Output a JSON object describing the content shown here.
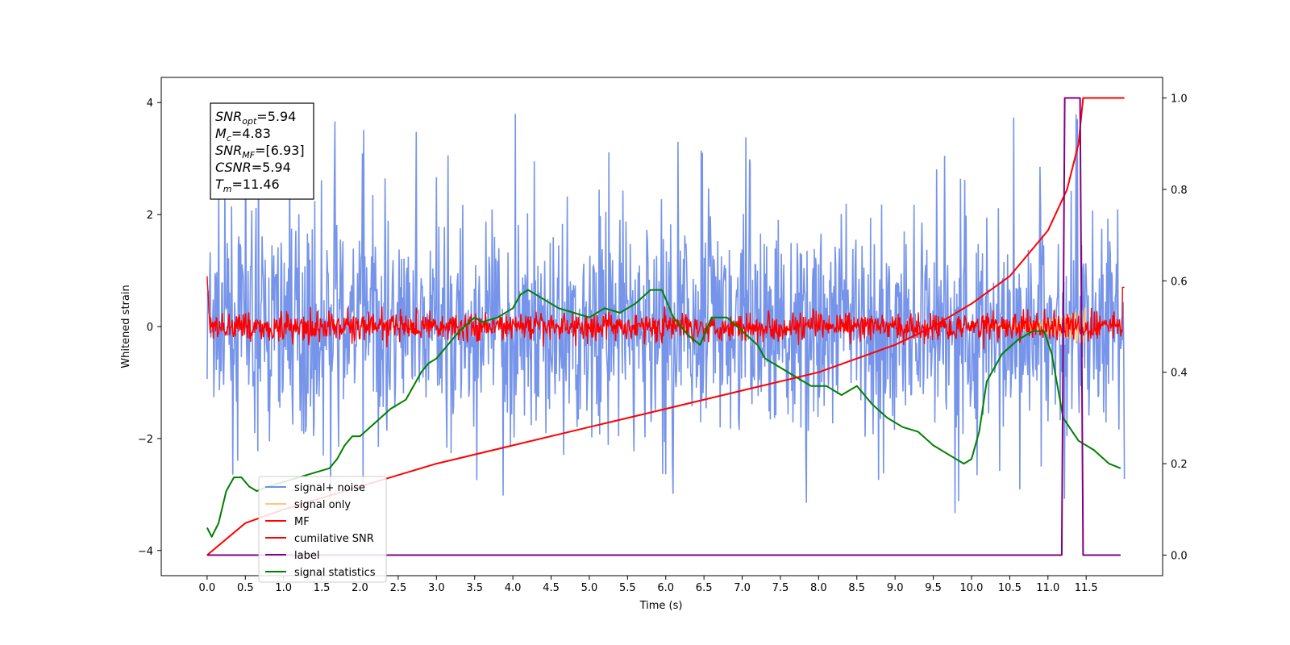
{
  "chart_data": {
    "type": "line",
    "xlabel": "Time (s)",
    "ylabel": "Whitened strain",
    "xlim": [
      -0.6,
      12.5
    ],
    "ylim": [
      -4.45,
      4.45
    ],
    "y2lim": [
      -0.045,
      1.045
    ],
    "xticks": [
      "0.0",
      "0.5",
      "1.0",
      "1.5",
      "2.0",
      "2.5",
      "3.0",
      "3.5",
      "4.0",
      "4.5",
      "5.0",
      "5.5",
      "6.0",
      "6.5",
      "7.0",
      "7.5",
      "8.0",
      "8.5",
      "9.0",
      "9.5",
      "10.0",
      "10.5",
      "11.0",
      "11.5"
    ],
    "yticks": [
      "−4",
      "−2",
      "0",
      "2",
      "4"
    ],
    "y2ticks": [
      "0.0",
      "0.2",
      "0.4",
      "0.6",
      "0.8",
      "1.0"
    ],
    "legend_position": "lower-left",
    "info_box": [
      {
        "name": "SNR",
        "sub": "opt",
        "value": "=5.94"
      },
      {
        "name": "M",
        "sub": "c",
        "value": "=4.83"
      },
      {
        "name": "SNR",
        "sub": "MF",
        "value": "=[6.93]"
      },
      {
        "name": "CSNR",
        "sub": "",
        "value": "=5.94"
      },
      {
        "name": "T",
        "sub": "m",
        "value": "=11.46"
      }
    ],
    "series": [
      {
        "name": "signal+ noise",
        "color": "#6f8ee8",
        "axis": "left",
        "style": "noise band, approx amplitude ±2.5, spikes to ±4"
      },
      {
        "name": "signal only",
        "color": "#ffc680",
        "axis": "left",
        "style": "chirp near 11.0–11.5 s, amplitude ~0.3"
      },
      {
        "name": "MF",
        "color": "#ff0000",
        "axis": "left",
        "style": "noise band, approx amplitude ±0.4"
      },
      {
        "name": "cumilative SNR",
        "color": "#ff0000",
        "axis": "right",
        "x": [
          0.0,
          0.5,
          1.0,
          2.0,
          3.0,
          4.0,
          5.0,
          6.0,
          7.0,
          8.0,
          8.5,
          9.0,
          9.5,
          10.0,
          10.5,
          11.0,
          11.25,
          11.4,
          11.46,
          12.0
        ],
        "y": [
          0.0,
          0.07,
          0.1,
          0.15,
          0.2,
          0.24,
          0.28,
          0.32,
          0.36,
          0.4,
          0.43,
          0.46,
          0.5,
          0.55,
          0.61,
          0.71,
          0.8,
          0.9,
          1.0,
          1.0
        ]
      },
      {
        "name": "label",
        "color": "#800080",
        "axis": "right",
        "x": [
          0.0,
          11.18,
          11.22,
          11.42,
          11.46,
          11.95
        ],
        "y": [
          0,
          0,
          1,
          1,
          0,
          0
        ]
      },
      {
        "name": "signal statistics",
        "color": "#008000",
        "axis": "right",
        "x": [
          0.0,
          0.06,
          0.15,
          0.25,
          0.35,
          0.45,
          0.55,
          0.65,
          0.8,
          1.0,
          1.2,
          1.4,
          1.6,
          1.7,
          1.8,
          1.9,
          2.0,
          2.2,
          2.4,
          2.6,
          2.8,
          2.9,
          3.0,
          3.2,
          3.3,
          3.5,
          3.6,
          3.8,
          4.0,
          4.1,
          4.2,
          4.3,
          4.5,
          4.6,
          4.8,
          5.0,
          5.2,
          5.4,
          5.6,
          5.8,
          5.95,
          6.1,
          6.3,
          6.45,
          6.6,
          6.8,
          7.0,
          7.2,
          7.3,
          7.5,
          7.7,
          7.9,
          8.1,
          8.3,
          8.5,
          8.7,
          8.9,
          9.1,
          9.3,
          9.5,
          9.7,
          9.9,
          10.0,
          10.1,
          10.2,
          10.4,
          10.6,
          10.8,
          10.95,
          11.05,
          11.2,
          11.4,
          11.6,
          11.8,
          11.95
        ],
        "y": [
          0.06,
          0.04,
          0.07,
          0.14,
          0.17,
          0.17,
          0.15,
          0.14,
          0.15,
          0.16,
          0.17,
          0.18,
          0.19,
          0.21,
          0.24,
          0.26,
          0.26,
          0.29,
          0.32,
          0.34,
          0.4,
          0.42,
          0.43,
          0.47,
          0.49,
          0.52,
          0.51,
          0.52,
          0.54,
          0.57,
          0.58,
          0.57,
          0.55,
          0.54,
          0.53,
          0.52,
          0.54,
          0.53,
          0.55,
          0.58,
          0.58,
          0.52,
          0.48,
          0.46,
          0.52,
          0.52,
          0.49,
          0.46,
          0.43,
          0.41,
          0.39,
          0.37,
          0.37,
          0.35,
          0.37,
          0.33,
          0.3,
          0.28,
          0.27,
          0.24,
          0.22,
          0.2,
          0.21,
          0.27,
          0.38,
          0.44,
          0.47,
          0.49,
          0.49,
          0.44,
          0.3,
          0.25,
          0.23,
          0.2,
          0.19
        ]
      }
    ]
  }
}
